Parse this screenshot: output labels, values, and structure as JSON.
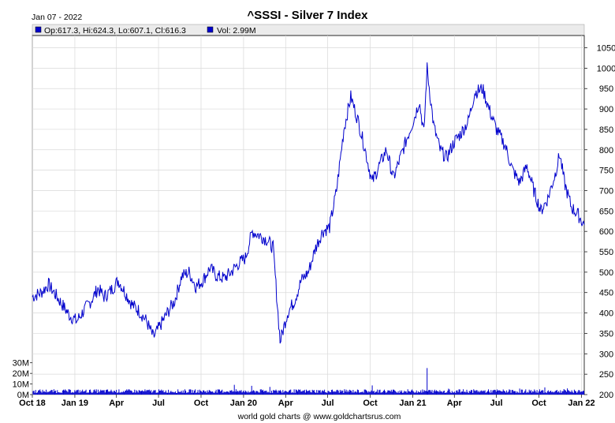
{
  "header": {
    "date": "Jan 07 - 2022",
    "title": "^SSSI - Silver 7 Index",
    "ohlc": "Op:617.3, Hi:624.3, Lo:607.1, Cl:616.3",
    "volume": "Vol: 2.99M",
    "footer": "world gold charts @ www.goldchartsrus.com"
  },
  "colors": {
    "price": "#0000cc",
    "volume": "#0000cc",
    "grid": "#d9d9d9",
    "legend_bg": "#ebebeb"
  },
  "chart_data": {
    "type": "line",
    "title": "^SSSI - Silver 7 Index",
    "price_axis": {
      "ylim": [
        200,
        1080
      ],
      "ticks": [
        200,
        250,
        300,
        350,
        400,
        450,
        500,
        550,
        600,
        650,
        700,
        750,
        800,
        850,
        900,
        950,
        1000,
        1050
      ],
      "labels": [
        "200",
        "250",
        "300",
        "350",
        "400",
        "450",
        "500",
        "550",
        "600",
        "650",
        "700",
        "750",
        "800",
        "850",
        "900",
        "950",
        "1000",
        "1050"
      ]
    },
    "volume_axis": {
      "ylim": [
        0,
        35
      ],
      "ticks": [
        0,
        10,
        20,
        30
      ],
      "labels": [
        "0M",
        "10M",
        "20M",
        "30M"
      ]
    },
    "x_axis": {
      "range": [
        "2018-10-01",
        "2022-01-07"
      ],
      "ticks": [
        "2018-10-01",
        "2019-01-01",
        "2019-04-01",
        "2019-07-01",
        "2019-10-01",
        "2020-01-01",
        "2020-04-01",
        "2020-07-01",
        "2020-10-01",
        "2021-01-01",
        "2021-04-01",
        "2021-07-01",
        "2021-10-01",
        "2022-01-01"
      ],
      "labels": [
        "Oct 18",
        "Jan 19",
        "Apr",
        "Jul",
        "Oct",
        "Jan 20",
        "Apr",
        "Jul",
        "Oct",
        "Jan 21",
        "Apr",
        "Jul",
        "Oct",
        "Jan 22"
      ]
    },
    "series": [
      {
        "values": [
          [
            "2018-10-01",
            440
          ],
          [
            "2018-10-20",
            450
          ],
          [
            "2018-11-05",
            470
          ],
          [
            "2018-11-20",
            445
          ],
          [
            "2018-12-05",
            420
          ],
          [
            "2018-12-20",
            395
          ],
          [
            "2019-01-05",
            380
          ],
          [
            "2019-01-20",
            405
          ],
          [
            "2019-02-05",
            430
          ],
          [
            "2019-02-20",
            460
          ],
          [
            "2019-03-05",
            440
          ],
          [
            "2019-03-20",
            455
          ],
          [
            "2019-04-05",
            480
          ],
          [
            "2019-04-20",
            450
          ],
          [
            "2019-05-05",
            420
          ],
          [
            "2019-05-20",
            405
          ],
          [
            "2019-06-05",
            380
          ],
          [
            "2019-06-20",
            340
          ],
          [
            "2019-07-05",
            370
          ],
          [
            "2019-07-20",
            400
          ],
          [
            "2019-08-05",
            430
          ],
          [
            "2019-08-20",
            490
          ],
          [
            "2019-09-05",
            500
          ],
          [
            "2019-09-20",
            465
          ],
          [
            "2019-10-05",
            480
          ],
          [
            "2019-10-20",
            510
          ],
          [
            "2019-11-05",
            490
          ],
          [
            "2019-11-20",
            485
          ],
          [
            "2019-12-05",
            500
          ],
          [
            "2019-12-20",
            520
          ],
          [
            "2020-01-05",
            535
          ],
          [
            "2020-01-20",
            600
          ],
          [
            "2020-02-05",
            590
          ],
          [
            "2020-02-20",
            580
          ],
          [
            "2020-03-05",
            560
          ],
          [
            "2020-03-20",
            330
          ],
          [
            "2020-04-05",
            400
          ],
          [
            "2020-04-20",
            430
          ],
          [
            "2020-05-05",
            480
          ],
          [
            "2020-05-20",
            500
          ],
          [
            "2020-06-05",
            560
          ],
          [
            "2020-06-20",
            600
          ],
          [
            "2020-07-05",
            610
          ],
          [
            "2020-07-20",
            700
          ],
          [
            "2020-08-05",
            850
          ],
          [
            "2020-08-20",
            930
          ],
          [
            "2020-09-05",
            870
          ],
          [
            "2020-09-20",
            800
          ],
          [
            "2020-10-05",
            720
          ],
          [
            "2020-10-20",
            760
          ],
          [
            "2020-11-05",
            800
          ],
          [
            "2020-11-20",
            730
          ],
          [
            "2020-12-05",
            780
          ],
          [
            "2020-12-20",
            830
          ],
          [
            "2021-01-05",
            880
          ],
          [
            "2021-01-15",
            920
          ],
          [
            "2021-01-25",
            840
          ],
          [
            "2021-02-01",
            1000
          ],
          [
            "2021-02-15",
            860
          ],
          [
            "2021-03-01",
            800
          ],
          [
            "2021-03-15",
            780
          ],
          [
            "2021-04-01",
            820
          ],
          [
            "2021-04-15",
            840
          ],
          [
            "2021-05-01",
            870
          ],
          [
            "2021-05-15",
            940
          ],
          [
            "2021-06-01",
            950
          ],
          [
            "2021-06-15",
            900
          ],
          [
            "2021-07-01",
            850
          ],
          [
            "2021-07-20",
            810
          ],
          [
            "2021-08-05",
            750
          ],
          [
            "2021-08-20",
            720
          ],
          [
            "2021-09-05",
            760
          ],
          [
            "2021-09-20",
            700
          ],
          [
            "2021-10-05",
            650
          ],
          [
            "2021-10-20",
            680
          ],
          [
            "2021-11-05",
            740
          ],
          [
            "2021-11-15",
            790
          ],
          [
            "2021-11-25",
            720
          ],
          [
            "2021-12-10",
            660
          ],
          [
            "2021-12-25",
            640
          ],
          [
            "2022-01-07",
            616
          ]
        ]
      }
    ]
  }
}
